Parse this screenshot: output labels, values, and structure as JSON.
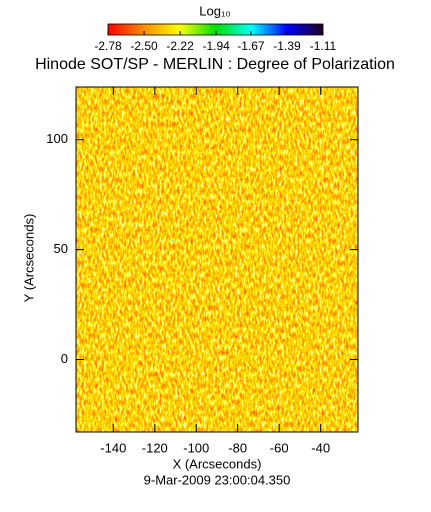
{
  "chart_data": {
    "type": "heatmap",
    "title": "Hinode SOT/SP - MERLIN : Degree of Polarization",
    "subtitle": "9-Mar-2009 23:00:04.350",
    "x_label": "X (Arcseconds)",
    "y_label": "Y (Arcseconds)",
    "xlim": [
      -158,
      -22
    ],
    "xticks": [
      -140,
      -120,
      -100,
      -80,
      -60,
      -40
    ],
    "ylim": [
      -33,
      124
    ],
    "yticks": [
      0,
      50,
      100
    ],
    "colorbar": {
      "label": "Log₁₀",
      "lim": [
        -2.78,
        -1.11
      ],
      "ticks": [
        -2.78,
        {
          "value": -2.5,
          "label": "-2.50"
        },
        -2.22,
        -1.94,
        -1.67,
        -1.39,
        -1.11
      ],
      "colormap": [
        "#ff0000",
        "#ff8c00",
        "#ffff00",
        "#00e000",
        "#00ffff",
        "#0000ff",
        "#200020"
      ]
    }
  }
}
